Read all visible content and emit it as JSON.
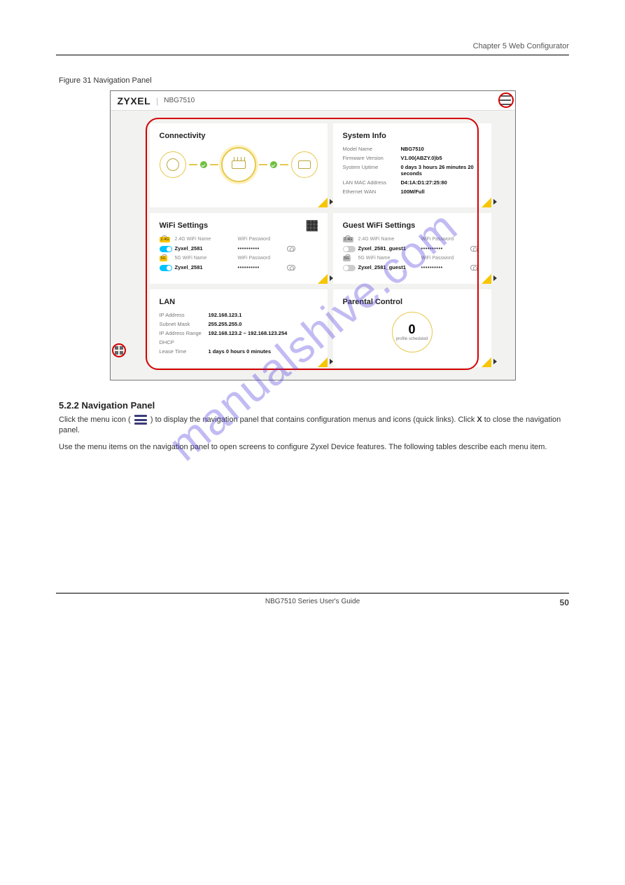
{
  "chapter_head": "Chapter 5 Web Configurator",
  "figure_caption": "Figure 31   Navigation Panel",
  "topbar": {
    "brand": "ZYXEL",
    "model": "NBG7510"
  },
  "panels": {
    "connectivity": {
      "title": "Connectivity"
    },
    "system_info": {
      "title": "System Info",
      "rows": [
        {
          "lbl": "Model Name",
          "val": "NBG7510"
        },
        {
          "lbl": "Firmware Version",
          "val": "V1.00(ABZY.0)b5"
        },
        {
          "lbl": "System Uptime",
          "val": "0 days 3 hours 26 minutes 20 seconds"
        },
        {
          "lbl": "LAN MAC Address",
          "val": "D4:1A:D1:27:25:80"
        },
        {
          "lbl": "Ethernet WAN",
          "val": "100M/Full"
        }
      ]
    },
    "wifi": {
      "title": "WiFi Settings",
      "hdr_name_24": "2.4G WiFi Name",
      "hdr_name_5": "5G WiFi Name",
      "hdr_pw": "WiFi Password",
      "badge_24": "2.4G",
      "badge_5": "5G",
      "name24": "Zyxel_2581",
      "name5": "Zyxel_2581",
      "pw_mask": "••••••••••"
    },
    "guest": {
      "title": "Guest WiFi Settings",
      "name24": "Zyxel_2581_guest1",
      "name5": "Zyxel_2581_guest1"
    },
    "lan": {
      "title": "LAN",
      "rows": [
        {
          "lbl": "IP Address",
          "val": "192.168.123.1"
        },
        {
          "lbl": "Subnet Mask",
          "val": "255.255.255.0"
        },
        {
          "lbl": "IP Address Range",
          "val": "192.168.123.2 ~ 192.168.123.254"
        },
        {
          "lbl": "DHCP",
          "val": ""
        },
        {
          "lbl": "Lease Time",
          "val": "1 days 0 hours 0 minutes"
        }
      ]
    },
    "parental": {
      "title": "Parental Control",
      "num": "0",
      "sub": "profile scheduled"
    }
  },
  "watermark": "manualshive.com",
  "body": {
    "section_title": "5.2.2  Navigation Panel",
    "p1_a": "Click the menu icon (",
    "p1_b": ") to display the navigation panel that contains configuration menus and icons (quick links). Click ",
    "p1_c": "X",
    "p1_d": " to close the navigation panel.",
    "p2": "Use the menu items on the navigation panel to open screens to configure Zyxel Device features. The following tables describe each menu item."
  },
  "footer": {
    "center": "NBG7510 Series User's Guide",
    "page": "50"
  },
  "colors": {
    "accent_yellow": "#f7c600",
    "red_annot": "#d40000",
    "toggle_on": "#00c3ff",
    "check_green": "#6fbf3f",
    "watermark_blue": "rgba(80,60,220,0.35)"
  }
}
